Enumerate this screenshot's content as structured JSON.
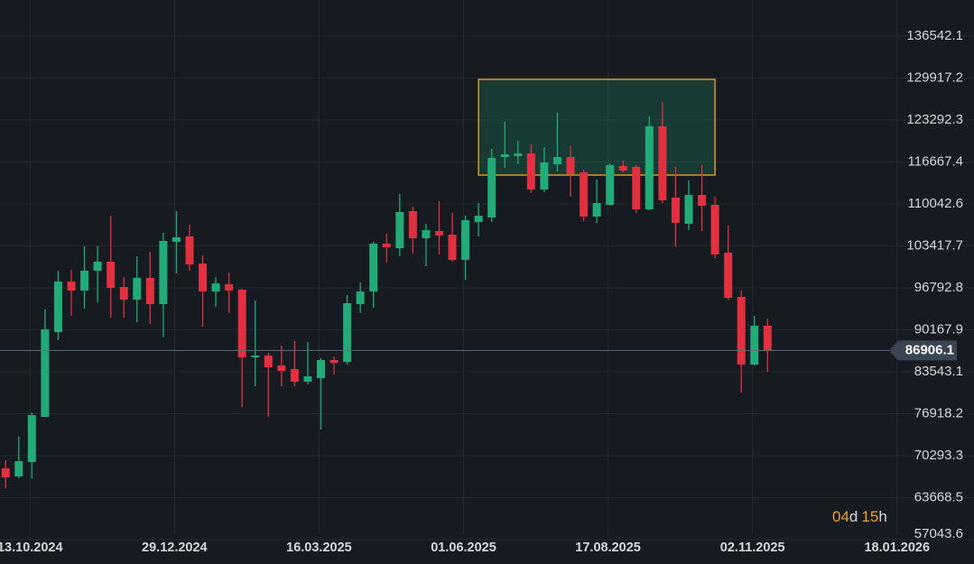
{
  "chart_data": {
    "type": "candlestick",
    "x": [
      "30.09.2024",
      "07.10.2024",
      "14.10.2024",
      "21.10.2024",
      "28.10.2024",
      "04.11.2024",
      "11.11.2024",
      "18.11.2024",
      "25.11.2024",
      "02.12.2024",
      "09.12.2024",
      "16.12.2024",
      "23.12.2024",
      "30.12.2024",
      "06.01.2025",
      "13.01.2025",
      "20.01.2025",
      "27.01.2025",
      "03.02.2025",
      "10.02.2025",
      "17.02.2025",
      "24.02.2025",
      "03.03.2025",
      "10.03.2025",
      "17.03.2025",
      "24.03.2025",
      "31.03.2025",
      "07.04.2025",
      "14.04.2025",
      "21.04.2025",
      "28.04.2025",
      "05.05.2025",
      "12.05.2025",
      "19.05.2025",
      "26.05.2025",
      "02.06.2025",
      "09.06.2025",
      "16.06.2025",
      "23.06.2025",
      "30.06.2025",
      "07.07.2025",
      "14.07.2025",
      "21.07.2025",
      "28.07.2025",
      "04.08.2025",
      "11.08.2025",
      "18.08.2025",
      "25.08.2025",
      "01.09.2025",
      "08.09.2025",
      "15.09.2025",
      "22.09.2025",
      "29.09.2025",
      "06.10.2025",
      "13.10.2025",
      "20.10.2025",
      "27.10.2025",
      "03.11.2025",
      "10.11.2025"
    ],
    "open": [
      68299,
      67017,
      69296,
      76420,
      89812,
      97790,
      96366,
      99500,
      100925,
      96936,
      94941,
      98360,
      94229,
      104059,
      104914,
      100640,
      96223,
      97363,
      96508,
      85823,
      86108,
      84541,
      83971,
      81976,
      82546,
      85395,
      85110,
      94229,
      96223,
      103774,
      103062,
      108903,
      104629,
      105769,
      105199,
      101210,
      107193,
      107906,
      117451,
      117594,
      118021,
      112322,
      116311,
      117451,
      115029,
      108048,
      109900,
      116026,
      115884,
      109188,
      122295,
      111040,
      106908,
      111467,
      109900,
      102349,
      95368,
      84683,
      90809
    ],
    "high": [
      69581,
      73286,
      77132,
      93374,
      99500,
      99642,
      103347,
      103347,
      108191,
      98503,
      101780,
      102492,
      105484,
      108903,
      106766,
      101922,
      98503,
      99215,
      96651,
      94798,
      86535,
      87675,
      88387,
      88245,
      85680,
      85965,
      95653,
      97648,
      104059,
      105341,
      111610,
      109615,
      106908,
      110470,
      108618,
      108191,
      110185,
      118733,
      123008,
      120016,
      119446,
      119018,
      124432,
      119161,
      115457,
      113889,
      116454,
      116881,
      116169,
      123862,
      126142,
      115884,
      113747,
      116169,
      111182,
      106623,
      96366,
      92376,
      91949
    ],
    "low": [
      65165,
      66732,
      66732,
      76420,
      88530,
      92376,
      93516,
      94514,
      92092,
      92092,
      91379,
      91094,
      88957,
      99073,
      99500,
      90667,
      93801,
      92804,
      77987,
      81264,
      76420,
      81264,
      81264,
      81549,
      74425,
      83116,
      84683,
      92804,
      93659,
      100782,
      101780,
      102207,
      100212,
      102064,
      100925,
      98075,
      104914,
      107193,
      115742,
      116311,
      111752,
      111895,
      115172,
      111182,
      107336,
      107051,
      109758,
      115029,
      108618,
      109045,
      110185,
      103347,
      105911,
      105769,
      101495,
      94798,
      80266,
      84541,
      83543
    ],
    "close": [
      66874,
      69439,
      76705,
      90239,
      97790,
      96366,
      99500,
      100925,
      96793,
      94941,
      98360,
      94229,
      104202,
      104771,
      100497,
      96223,
      97505,
      96366,
      85823,
      86108,
      84256,
      83686,
      81976,
      82831,
      85395,
      84968,
      94371,
      96223,
      103774,
      103204,
      108760,
      104629,
      105911,
      105056,
      101210,
      107478,
      108191,
      117309,
      117879,
      118021,
      112322,
      116596,
      117451,
      114744,
      108048,
      110185,
      116169,
      115314,
      109188,
      122295,
      110613,
      107051,
      111467,
      109758,
      102064,
      95226,
      84683,
      90809,
      86906.1
    ],
    "up_color": "#22ab76",
    "down_color": "#e1303f",
    "ylim": [
      53197.5,
      142240.8
    ],
    "yticks": [
      57043.6,
      63668.5,
      70293.3,
      76918.2,
      83543.1,
      90167.9,
      96792.8,
      103417.7,
      110042.6,
      116667.4,
      123292.3,
      129917.2,
      136542.1
    ],
    "xlim": [
      "27.09.2024",
      "28.02.2026"
    ],
    "xticks": [
      "13.10.2024",
      "29.12.2024",
      "16.03.2025",
      "01.06.2025",
      "17.08.2025",
      "02.11.2025",
      "18.01.2026"
    ],
    "grid": true,
    "last_price": 86906.1,
    "zone": {
      "x": [
        "09.06.2025",
        "13.10.2025"
      ],
      "y": [
        114602,
        129704
      ],
      "fill": "rgba(30,110,84,0.38)",
      "stroke": "#d9962a"
    },
    "countdown": {
      "days": "04",
      "days_unit": "d",
      "hours": "15",
      "hours_unit": "h"
    }
  }
}
